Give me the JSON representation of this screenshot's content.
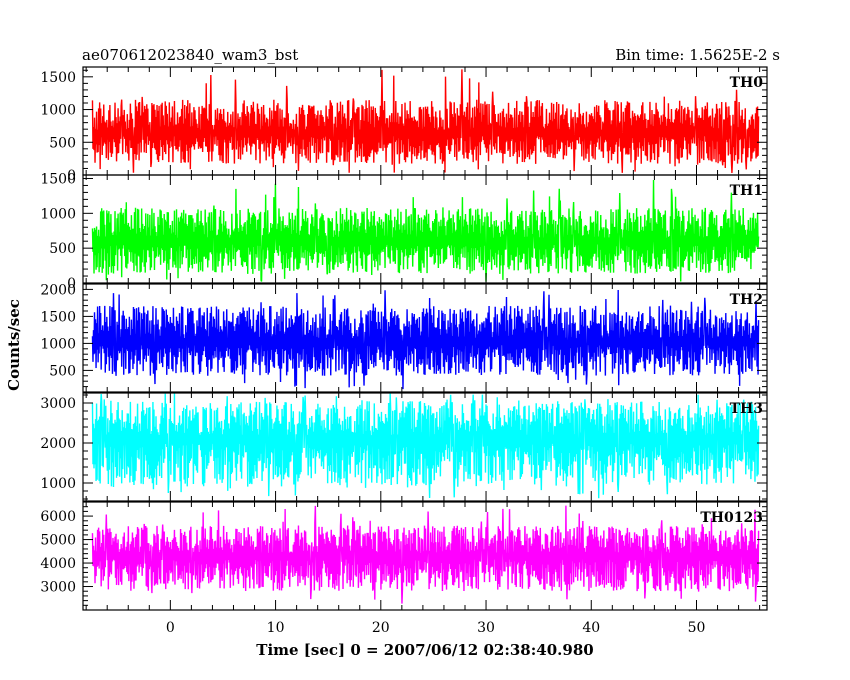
{
  "title_left": "ae070612023840_wam3_bst",
  "title_right": "Bin time: 1.5625E-2 s",
  "xlabel": "Time [sec] 0 = 2007/06/12 02:38:40.980",
  "ylabel": "Counts/sec",
  "colors": {
    "TH0": "#ff0000",
    "TH1": "#00ff00",
    "TH2": "#0000ff",
    "TH3": "#00ffff",
    "TH0123": "#ff00ff",
    "axes": "#000000",
    "background": "#ffffff"
  },
  "chart_data": {
    "type": "line",
    "x_range": [
      -8.3,
      56.7
    ],
    "x_data_range": [
      -7.4,
      55.9
    ],
    "bin_time": 0.015625,
    "x_ticks": [
      0,
      10,
      20,
      30,
      40,
      50
    ],
    "grid": false,
    "panels": [
      {
        "name": "TH0",
        "ylim": [
          0,
          1650
        ],
        "y_ticks": [
          0,
          500,
          1000,
          1500
        ],
        "mean": 640,
        "typical_low": 170,
        "typical_high": 1150,
        "peak_max": 1620,
        "min": 20
      },
      {
        "name": "TH1",
        "ylim": [
          0,
          1550
        ],
        "y_ticks": [
          0,
          500,
          1000,
          1500
        ],
        "mean": 600,
        "typical_low": 130,
        "typical_high": 1080,
        "peak_max": 1480,
        "min": 20
      },
      {
        "name": "TH2",
        "ylim": [
          100,
          2100
        ],
        "y_ticks": [
          500,
          1000,
          1500,
          2000
        ],
        "mean": 1030,
        "typical_low": 400,
        "typical_high": 1700,
        "peak_max": 2000,
        "min": 150
      },
      {
        "name": "TH3",
        "ylim": [
          550,
          3250
        ],
        "y_ticks": [
          1000,
          2000,
          3000
        ],
        "mean": 2100,
        "typical_low": 900,
        "typical_high": 3050,
        "peak_max": 3250,
        "min": 600
      },
      {
        "name": "TH0123",
        "ylim": [
          2000,
          6600
        ],
        "y_ticks": [
          3000,
          4000,
          5000,
          6000
        ],
        "mean": 4300,
        "typical_low": 2800,
        "typical_high": 5600,
        "peak_max": 6500,
        "min": 2100
      }
    ]
  }
}
